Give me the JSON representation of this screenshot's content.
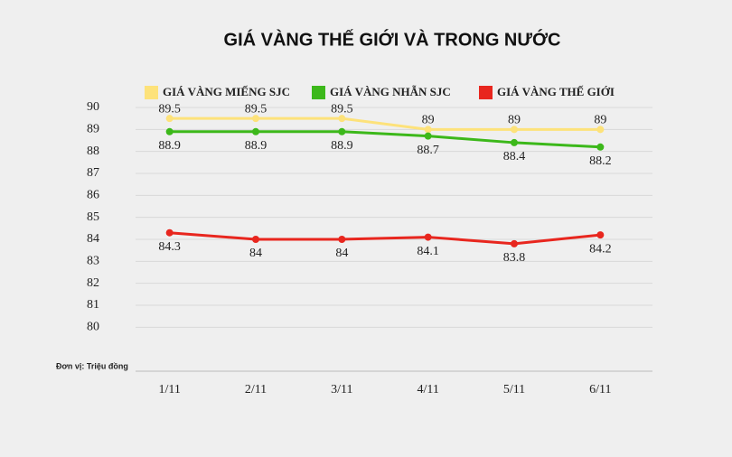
{
  "chart_data": {
    "type": "line",
    "title": "GIÁ VÀNG THẾ GIỚI VÀ TRONG NƯỚC",
    "unit_note": "Đơn vị: Triệu đồng",
    "categories": [
      "1/11",
      "2/11",
      "3/11",
      "4/11",
      "5/11",
      "6/11"
    ],
    "series": [
      {
        "name": "GIÁ VÀNG MIẾNG SJC",
        "color": "#fde27a",
        "values": [
          89.5,
          89.5,
          89.5,
          89,
          89,
          89
        ]
      },
      {
        "name": "GIÁ VÀNG NHẪN SJC",
        "color": "#3cb81a",
        "values": [
          88.9,
          88.9,
          88.9,
          88.7,
          88.4,
          88.2
        ]
      },
      {
        "name": "GIÁ VÀNG THẾ GIỚI",
        "color": "#e8261e",
        "values": [
          84.3,
          84,
          84,
          84.1,
          83.8,
          84.2
        ]
      }
    ],
    "ylim": [
      78,
      90
    ],
    "yticks": [
      80,
      81,
      82,
      83,
      84,
      85,
      86,
      87,
      88,
      89,
      90
    ],
    "grid": true,
    "legend": "top"
  }
}
